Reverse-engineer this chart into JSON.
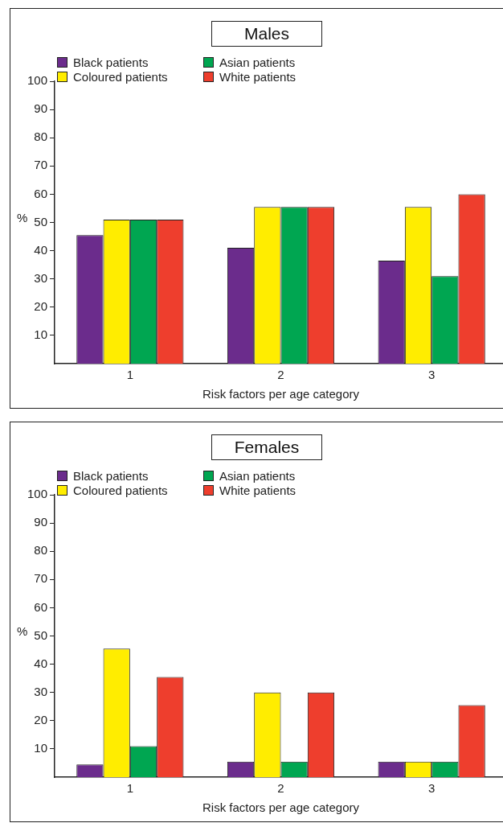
{
  "chart_data": [
    {
      "type": "bar",
      "title": "Males",
      "xlabel": "Risk factors per age category",
      "ylabel": "%",
      "categories": [
        "1",
        "2",
        "3"
      ],
      "ylim": [
        0,
        100
      ],
      "yticks": [
        10,
        20,
        30,
        40,
        50,
        60,
        70,
        80,
        90,
        100
      ],
      "grid": false,
      "legend": "top left",
      "series": [
        {
          "name": "Black patients",
          "color": "#6b2c8c",
          "values": [
            45.5,
            41,
            36.5
          ]
        },
        {
          "name": "Coloured patients",
          "color": "#ffed00",
          "values": [
            51,
            55.5,
            55.5
          ]
        },
        {
          "name": "Asian patients",
          "color": "#00a651",
          "values": [
            51,
            55.5,
            31
          ]
        },
        {
          "name": "White patients",
          "color": "#ee3e2d",
          "values": [
            51,
            55.5,
            60
          ]
        }
      ]
    },
    {
      "type": "bar",
      "title": "Females",
      "xlabel": "Risk factors per age category",
      "ylabel": "%",
      "categories": [
        "1",
        "2",
        "3"
      ],
      "ylim": [
        0,
        100
      ],
      "yticks": [
        10,
        20,
        30,
        40,
        50,
        60,
        70,
        80,
        90,
        100
      ],
      "grid": false,
      "legend": "top left",
      "series": [
        {
          "name": "Black patients",
          "color": "#6b2c8c",
          "values": [
            4.5,
            5.5,
            5.5
          ]
        },
        {
          "name": "Coloured patients",
          "color": "#ffed00",
          "values": [
            45.5,
            30,
            5.5
          ]
        },
        {
          "name": "Asian patients",
          "color": "#00a651",
          "values": [
            11,
            5.5,
            5.5
          ]
        },
        {
          "name": "White patients",
          "color": "#ee3e2d",
          "values": [
            35.5,
            30,
            25.5
          ]
        }
      ]
    }
  ]
}
